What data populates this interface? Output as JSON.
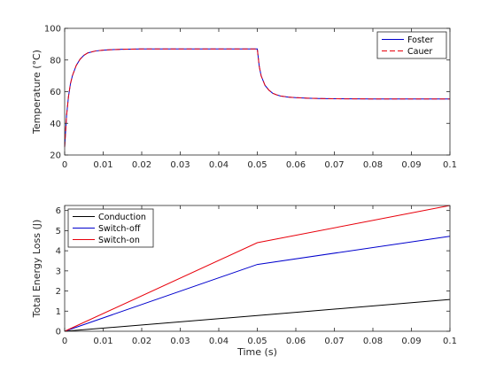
{
  "colors": {
    "foster": "#0000cd",
    "cauer": "#e8000b",
    "conduction": "#000000",
    "switch_off": "#0000cd",
    "switch_on": "#e8000b",
    "axis": "#262626"
  },
  "chart_data": [
    {
      "type": "line",
      "title": "",
      "xlabel": "",
      "ylabel": "Temperature (°C)",
      "xlim": [
        0,
        0.1
      ],
      "ylim": [
        20,
        100
      ],
      "xticks": [
        0,
        0.01,
        0.02,
        0.03,
        0.04,
        0.05,
        0.06,
        0.07,
        0.08,
        0.09,
        0.1
      ],
      "yticks": [
        20,
        40,
        60,
        80,
        100
      ],
      "xtick_labels": [
        "0",
        "0.01",
        "0.02",
        "0.03",
        "0.04",
        "0.05",
        "0.06",
        "0.07",
        "0.08",
        "0.09",
        "0.1"
      ],
      "ytick_labels": [
        "20",
        "40",
        "60",
        "80",
        "100"
      ],
      "grid": false,
      "legend_position": "top-right",
      "series": [
        {
          "name": "Foster",
          "style": "solid",
          "x": [
            0,
            0.0005,
            0.001,
            0.0015,
            0.002,
            0.003,
            0.004,
            0.005,
            0.006,
            0.008,
            0.01,
            0.012,
            0.015,
            0.02,
            0.03,
            0.04,
            0.05,
            0.0505,
            0.051,
            0.052,
            0.053,
            0.054,
            0.055,
            0.056,
            0.058,
            0.06,
            0.063,
            0.066,
            0.07,
            0.08,
            0.09,
            0.1
          ],
          "y": [
            25,
            45,
            57,
            65,
            70,
            76.5,
            80.5,
            83,
            84.5,
            85.7,
            86.2,
            86.5,
            86.8,
            87,
            87,
            87,
            87,
            76,
            70,
            64,
            61,
            59,
            58,
            57.3,
            56.6,
            56.2,
            55.9,
            55.7,
            55.5,
            55.4,
            55.4,
            55.4
          ]
        },
        {
          "name": "Cauer",
          "style": "dashed",
          "x": [
            0,
            0.0005,
            0.001,
            0.0015,
            0.002,
            0.003,
            0.004,
            0.005,
            0.006,
            0.008,
            0.01,
            0.012,
            0.015,
            0.02,
            0.03,
            0.04,
            0.05,
            0.0505,
            0.051,
            0.052,
            0.053,
            0.054,
            0.055,
            0.056,
            0.058,
            0.06,
            0.063,
            0.066,
            0.07,
            0.08,
            0.09,
            0.1
          ],
          "y": [
            25,
            45,
            57,
            65,
            70,
            76.5,
            80.5,
            83,
            84.5,
            85.7,
            86.2,
            86.5,
            86.8,
            87,
            87,
            87,
            87,
            76,
            70,
            64,
            61,
            59,
            58,
            57.3,
            56.6,
            56.2,
            55.9,
            55.7,
            55.5,
            55.4,
            55.4,
            55.4
          ]
        }
      ]
    },
    {
      "type": "line",
      "title": "",
      "xlabel": "Time (s)",
      "ylabel": "Total Energy Loss (J)",
      "xlim": [
        0,
        0.1
      ],
      "ylim": [
        0,
        6.25
      ],
      "xticks": [
        0,
        0.01,
        0.02,
        0.03,
        0.04,
        0.05,
        0.06,
        0.07,
        0.08,
        0.09,
        0.1
      ],
      "yticks": [
        0,
        1,
        2,
        3,
        4,
        5,
        6
      ],
      "xtick_labels": [
        "0",
        "0.01",
        "0.02",
        "0.03",
        "0.04",
        "0.05",
        "0.06",
        "0.07",
        "0.08",
        "0.09",
        "0.1"
      ],
      "ytick_labels": [
        "0",
        "1",
        "2",
        "3",
        "4",
        "5",
        "6"
      ],
      "grid": false,
      "legend_position": "top-left",
      "series": [
        {
          "name": "Conduction",
          "x": [
            0,
            0.05,
            0.1
          ],
          "y": [
            0,
            0.78,
            1.58
          ]
        },
        {
          "name": "Switch-off",
          "x": [
            0,
            0.05,
            0.1
          ],
          "y": [
            0,
            3.32,
            4.72
          ]
        },
        {
          "name": "Switch-on",
          "x": [
            0,
            0.05,
            0.1
          ],
          "y": [
            0,
            4.4,
            6.25
          ]
        }
      ]
    }
  ]
}
